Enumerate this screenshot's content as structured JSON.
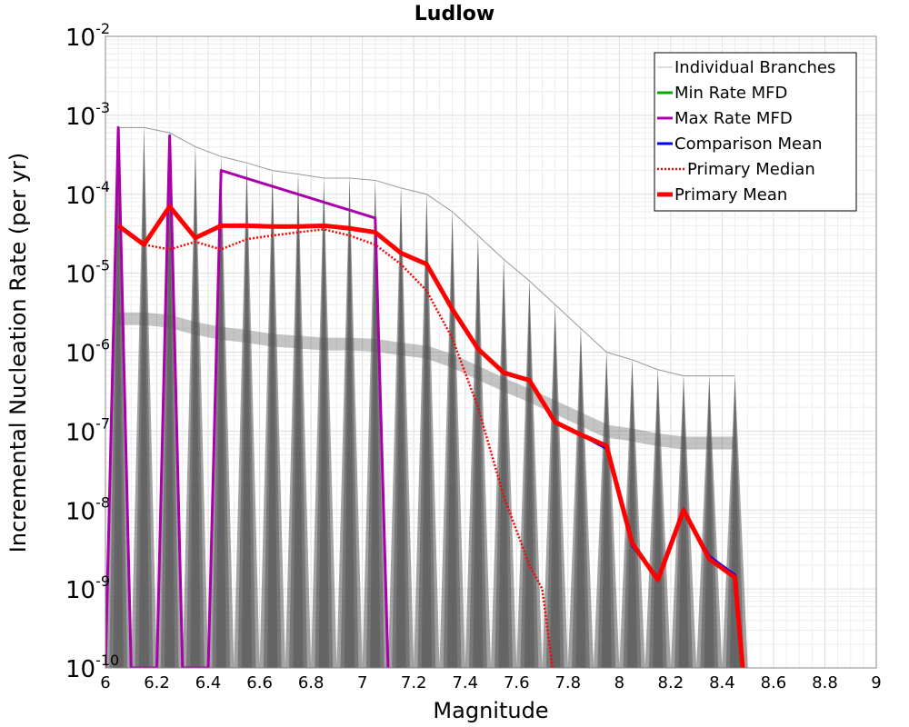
{
  "chart_data": {
    "type": "line",
    "title": "Ludlow",
    "xlabel": "Magnitude",
    "ylabel": "Incremental Nucleation Rate (per yr)",
    "xlim": [
      6,
      9
    ],
    "ylim": [
      1e-10,
      0.01
    ],
    "yscale": "log",
    "grid": true,
    "legend_position": "top-right",
    "x_ticks": [
      "6",
      "6.2",
      "6.4",
      "6.6",
      "6.8",
      "7",
      "7.2",
      "7.4",
      "7.6",
      "7.8",
      "8",
      "8.2",
      "8.4",
      "8.6",
      "8.8",
      "9"
    ],
    "y_ticks": [
      {
        "base": "10",
        "exp": "-2"
      },
      {
        "base": "10",
        "exp": "-3"
      },
      {
        "base": "10",
        "exp": "-4"
      },
      {
        "base": "10",
        "exp": "-5"
      },
      {
        "base": "10",
        "exp": "-6"
      },
      {
        "base": "10",
        "exp": "-7"
      },
      {
        "base": "10",
        "exp": "-8"
      },
      {
        "base": "10",
        "exp": "-9"
      },
      {
        "base": "10",
        "exp": "-10"
      }
    ],
    "series": [
      {
        "name": "Individual Branches",
        "color": "#555555",
        "style": "thin-band",
        "x": [
          6.05,
          6.15,
          6.25,
          6.35,
          6.45,
          6.55,
          6.65,
          6.75,
          6.85,
          6.95,
          7.05,
          7.15,
          7.25,
          7.35,
          7.45,
          7.55,
          7.65,
          7.75,
          7.85,
          7.95,
          8.05,
          8.15,
          8.25,
          8.35,
          8.45
        ],
        "upper": [
          0.0007,
          0.0007,
          0.0006,
          0.0004,
          0.0003,
          0.00025,
          0.0002,
          0.00018,
          0.00016,
          0.00016,
          0.00015,
          0.00012,
          0.0001,
          6e-05,
          3e-05,
          1.5e-05,
          8e-06,
          4e-06,
          2e-06,
          1e-06,
          8e-07,
          6e-07,
          5e-07,
          5e-07,
          5e-07
        ],
        "lower": [
          1e-10,
          1e-10,
          1e-10,
          1e-10,
          1e-10,
          1e-10,
          1e-10,
          1e-10,
          1e-10,
          1e-10,
          1e-10,
          1e-10,
          1e-10,
          1e-10,
          1e-10,
          1e-10,
          1e-10,
          1e-10,
          1e-10,
          1e-10,
          1e-10,
          1e-10,
          1e-10,
          1e-10,
          1e-10
        ]
      },
      {
        "name": "Min Rate MFD",
        "color": "#00aa00",
        "style": "solid",
        "x": [],
        "y": []
      },
      {
        "name": "Max Rate MFD",
        "color": "#aa00aa",
        "style": "solid",
        "x": [
          6.0,
          6.05,
          6.1,
          6.2,
          6.25,
          6.3,
          6.4,
          6.45,
          7.05,
          7.1
        ],
        "y": [
          1e-10,
          0.0007,
          1e-10,
          1e-10,
          0.00055,
          1e-10,
          1e-10,
          0.0002,
          5e-05,
          1e-10
        ]
      },
      {
        "name": "Comparison Mean",
        "color": "#0000ff",
        "style": "solid",
        "x": [
          6.05,
          6.15,
          6.25,
          6.35,
          6.45,
          6.55,
          6.65,
          6.75,
          6.85,
          6.95,
          7.05,
          7.15,
          7.25,
          7.35,
          7.45,
          7.55,
          7.65,
          7.75,
          7.85,
          7.95,
          8.05,
          8.15,
          8.25,
          8.35,
          8.45,
          8.48
        ],
        "y": [
          4e-05,
          2.3e-05,
          7e-05,
          2.8e-05,
          4e-05,
          4e-05,
          3.9e-05,
          3.9e-05,
          4e-05,
          3.7e-05,
          3.3e-05,
          1.8e-05,
          1.3e-05,
          3.5e-06,
          1.1e-06,
          5.5e-07,
          4.4e-07,
          1.3e-07,
          9e-08,
          6e-08,
          3.5e-09,
          1.4e-09,
          1e-08,
          2.6e-09,
          1.5e-09,
          1e-10
        ]
      },
      {
        "name": "Primary Median",
        "color": "#ff0000",
        "style": "dotted",
        "x": [
          6.05,
          6.15,
          6.25,
          6.35,
          6.45,
          6.55,
          6.65,
          6.75,
          6.85,
          6.95,
          7.05,
          7.15,
          7.25,
          7.35,
          7.45,
          7.55,
          7.65,
          7.7,
          7.74
        ],
        "y": [
          4e-05,
          2.3e-05,
          2e-05,
          2.5e-05,
          2e-05,
          2.7e-05,
          3e-05,
          3.3e-05,
          3.6e-05,
          3e-05,
          2.3e-05,
          1.3e-05,
          6e-06,
          1.5e-06,
          2e-07,
          1.5e-08,
          2e-09,
          1e-09,
          1e-10
        ]
      },
      {
        "name": "Primary Mean",
        "color": "#ff0000",
        "style": "thick",
        "x": [
          6.05,
          6.15,
          6.25,
          6.35,
          6.45,
          6.55,
          6.65,
          6.75,
          6.85,
          6.95,
          7.05,
          7.15,
          7.25,
          7.35,
          7.45,
          7.55,
          7.65,
          7.75,
          7.85,
          7.95,
          8.05,
          8.15,
          8.25,
          8.35,
          8.45,
          8.48
        ],
        "y": [
          4e-05,
          2.3e-05,
          7e-05,
          2.8e-05,
          4e-05,
          4e-05,
          3.9e-05,
          3.9e-05,
          4e-05,
          3.7e-05,
          3.3e-05,
          1.8e-05,
          1.3e-05,
          3.5e-06,
          1.1e-06,
          5.5e-07,
          4.4e-07,
          1.3e-07,
          9e-08,
          6.5e-08,
          3.8e-09,
          1.3e-09,
          1e-08,
          2.4e-09,
          1.4e-09,
          1e-10
        ]
      }
    ]
  }
}
